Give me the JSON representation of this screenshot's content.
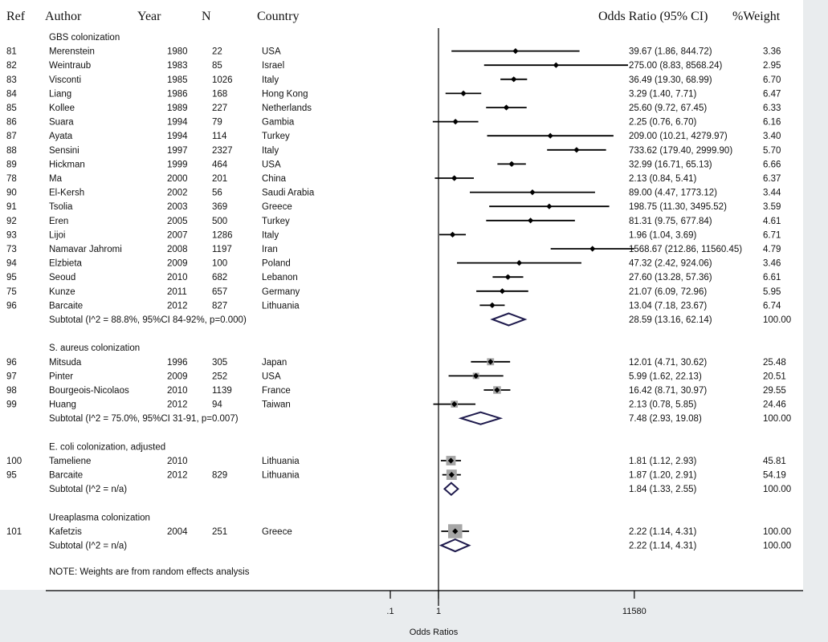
{
  "headers": {
    "ref": "Ref",
    "author": "Author",
    "year": "Year",
    "n": "N",
    "country": "Country",
    "or": "Odds Ratio (95% CI)",
    "weight": "%Weight"
  },
  "note": "NOTE: Weights are from random effects analysis",
  "chart_data": {
    "type": "forest",
    "xlabel": "Odds Ratios",
    "scale": "log",
    "reference_line": 1,
    "x_ticks": [
      ".1",
      "1",
      "11580"
    ],
    "x_tick_values": [
      0.1,
      1,
      11580
    ],
    "groups": [
      {
        "name": "GBS colonization",
        "subtotal_label": "Subtotal (I^2 = 88.8%, 95%CI 84-92%, p=0.000)",
        "subtotal": {
          "or": 28.59,
          "lo": 13.16,
          "hi": 62.14,
          "text": "28.59 (13.16, 62.14)",
          "weight": "100.00"
        },
        "studies": [
          {
            "ref": "81",
            "author": "Merenstein",
            "year": "1980",
            "n": "22",
            "country": "USA",
            "or": 39.67,
            "lo": 1.86,
            "hi": 844.72,
            "text": "39.67 (1.86, 844.72)",
            "weight": "3.36"
          },
          {
            "ref": "82",
            "author": "Weintraub",
            "year": "1983",
            "n": "85",
            "country": "Israel",
            "or": 275.0,
            "lo": 8.83,
            "hi": 8568.24,
            "text": "275.00 (8.83, 8568.24)",
            "weight": "2.95"
          },
          {
            "ref": "83",
            "author": "Visconti",
            "year": "1985",
            "n": "1026",
            "country": "Italy",
            "or": 36.49,
            "lo": 19.3,
            "hi": 68.99,
            "text": "36.49 (19.30, 68.99)",
            "weight": "6.70"
          },
          {
            "ref": "84",
            "author": "Liang",
            "year": "1986",
            "n": "168",
            "country": "Hong Kong",
            "or": 3.29,
            "lo": 1.4,
            "hi": 7.71,
            "text": "3.29 (1.40, 7.71)",
            "weight": "6.47"
          },
          {
            "ref": "85",
            "author": "Kollee",
            "year": "1989",
            "n": "227",
            "country": "Netherlands",
            "or": 25.6,
            "lo": 9.72,
            "hi": 67.45,
            "text": "25.60 (9.72, 67.45)",
            "weight": "6.33"
          },
          {
            "ref": "86",
            "author": "Suara",
            "year": "1994",
            "n": "79",
            "country": "Gambia",
            "or": 2.25,
            "lo": 0.76,
            "hi": 6.7,
            "text": "2.25 (0.76, 6.70)",
            "weight": "6.16"
          },
          {
            "ref": "87",
            "author": "Ayata",
            "year": "1994",
            "n": "114",
            "country": "Turkey",
            "or": 209.0,
            "lo": 10.21,
            "hi": 4279.97,
            "text": "209.00 (10.21, 4279.97)",
            "weight": "3.40"
          },
          {
            "ref": "88",
            "author": "Sensini",
            "year": "1997",
            "n": "2327",
            "country": "Italy",
            "or": 733.62,
            "lo": 179.4,
            "hi": 2999.9,
            "text": "733.62 (179.40, 2999.90)",
            "weight": "5.70"
          },
          {
            "ref": "89",
            "author": "Hickman",
            "year": "1999",
            "n": "464",
            "country": "USA",
            "or": 32.99,
            "lo": 16.71,
            "hi": 65.13,
            "text": "32.99 (16.71, 65.13)",
            "weight": "6.66"
          },
          {
            "ref": "78",
            "author": "Ma",
            "year": "2000",
            "n": "201",
            "country": "China",
            "or": 2.13,
            "lo": 0.84,
            "hi": 5.41,
            "text": "2.13 (0.84, 5.41)",
            "weight": "6.37"
          },
          {
            "ref": "90",
            "author": "El-Kersh",
            "year": "2002",
            "n": "56",
            "country": "Saudi Arabia",
            "or": 89.0,
            "lo": 4.47,
            "hi": 1773.12,
            "text": "89.00 (4.47, 1773.12)",
            "weight": "3.44"
          },
          {
            "ref": "91",
            "author": "Tsolia",
            "year": "2003",
            "n": "369",
            "country": "Greece",
            "or": 198.75,
            "lo": 11.3,
            "hi": 3495.52,
            "text": "198.75 (11.30, 3495.52)",
            "weight": "3.59"
          },
          {
            "ref": "92",
            "author": "Eren",
            "year": "2005",
            "n": "500",
            "country": "Turkey",
            "or": 81.31,
            "lo": 9.75,
            "hi": 677.84,
            "text": "81.31 (9.75, 677.84)",
            "weight": "4.61"
          },
          {
            "ref": "93",
            "author": "Lijoi",
            "year": "2007",
            "n": "1286",
            "country": "Italy",
            "or": 1.96,
            "lo": 1.04,
            "hi": 3.69,
            "text": "1.96 (1.04, 3.69)",
            "weight": "6.71"
          },
          {
            "ref": "73",
            "author": "Namavar Jahromi",
            "year": "2008",
            "n": "1197",
            "country": "Iran",
            "or": 1568.67,
            "lo": 212.86,
            "hi": 11560.45,
            "text": "1568.67 (212.86, 11560.45)",
            "weight": "4.79"
          },
          {
            "ref": "94",
            "author": "Elzbieta",
            "year": "2009",
            "n": "100",
            "country": "Poland",
            "or": 47.32,
            "lo": 2.42,
            "hi": 924.06,
            "text": "47.32 (2.42, 924.06)",
            "weight": "3.46"
          },
          {
            "ref": "95",
            "author": "Seoud",
            "year": "2010",
            "n": "682",
            "country": "Lebanon",
            "or": 27.6,
            "lo": 13.28,
            "hi": 57.36,
            "text": "27.60 (13.28, 57.36)",
            "weight": "6.61"
          },
          {
            "ref": "75",
            "author": "Kunze",
            "year": "2011",
            "n": "657",
            "country": "Germany",
            "or": 21.07,
            "lo": 6.09,
            "hi": 72.96,
            "text": "21.07 (6.09, 72.96)",
            "weight": "5.95"
          },
          {
            "ref": "96",
            "author": "Barcaite",
            "year": "2012",
            "n": "827",
            "country": "Lithuania",
            "or": 13.04,
            "lo": 7.18,
            "hi": 23.67,
            "text": "13.04 (7.18, 23.67)",
            "weight": "6.74"
          }
        ]
      },
      {
        "name": "S. aureus colonization",
        "subtotal_label": "Subtotal (I^2 = 75.0%, 95%CI 31-91, p=0.007)",
        "subtotal": {
          "or": 7.48,
          "lo": 2.93,
          "hi": 19.08,
          "text": "7.48 (2.93, 19.08)",
          "weight": "100.00"
        },
        "studies": [
          {
            "ref": "96",
            "author": "Mitsuda",
            "year": "1996",
            "n": "305",
            "country": "Japan",
            "or": 12.01,
            "lo": 4.71,
            "hi": 30.62,
            "text": "12.01 (4.71, 30.62)",
            "weight": "25.48"
          },
          {
            "ref": "97",
            "author": "Pinter",
            "year": "2009",
            "n": "252",
            "country": "USA",
            "or": 5.99,
            "lo": 1.62,
            "hi": 22.13,
            "text": "5.99 (1.62, 22.13)",
            "weight": "20.51"
          },
          {
            "ref": "98",
            "author": "Bourgeois-Nicolaos",
            "year": "2010",
            "n": "1139",
            "country": "France",
            "or": 16.42,
            "lo": 8.71,
            "hi": 30.97,
            "text": "16.42 (8.71, 30.97)",
            "weight": "29.55"
          },
          {
            "ref": "99",
            "author": "Huang",
            "year": "2012",
            "n": "94",
            "country": "Taiwan",
            "or": 2.13,
            "lo": 0.78,
            "hi": 5.85,
            "text": "2.13 (0.78, 5.85)",
            "weight": "24.46"
          }
        ]
      },
      {
        "name": "E. coli colonization, adjusted",
        "subtotal_label": "Subtotal (I^2 = n/a)",
        "subtotal": {
          "or": 1.84,
          "lo": 1.33,
          "hi": 2.55,
          "text": "1.84 (1.33, 2.55)",
          "weight": "100.00"
        },
        "studies": [
          {
            "ref": "100",
            "author": "Tameliene",
            "year": "2010",
            "n": "",
            "country": "Lithuania",
            "or": 1.81,
            "lo": 1.12,
            "hi": 2.93,
            "text": "1.81 (1.12, 2.93)",
            "weight": "45.81"
          },
          {
            "ref": "95",
            "author": "Barcaite",
            "year": "2012",
            "n": "829",
            "country": "Lithuania",
            "or": 1.87,
            "lo": 1.2,
            "hi": 2.91,
            "text": "1.87 (1.20, 2.91)",
            "weight": "54.19"
          }
        ]
      },
      {
        "name": "Ureaplasma colonization",
        "subtotal_label": "Subtotal (I^2 = n/a)",
        "subtotal": {
          "or": 2.22,
          "lo": 1.14,
          "hi": 4.31,
          "text": "2.22 (1.14, 4.31)",
          "weight": "100.00"
        },
        "studies": [
          {
            "ref": "101",
            "author": "Kafetzis",
            "year": "2004",
            "n": "251",
            "country": "Greece",
            "or": 2.22,
            "lo": 1.14,
            "hi": 4.31,
            "text": "2.22 (1.14, 4.31)",
            "weight": "100.00"
          }
        ]
      }
    ]
  }
}
